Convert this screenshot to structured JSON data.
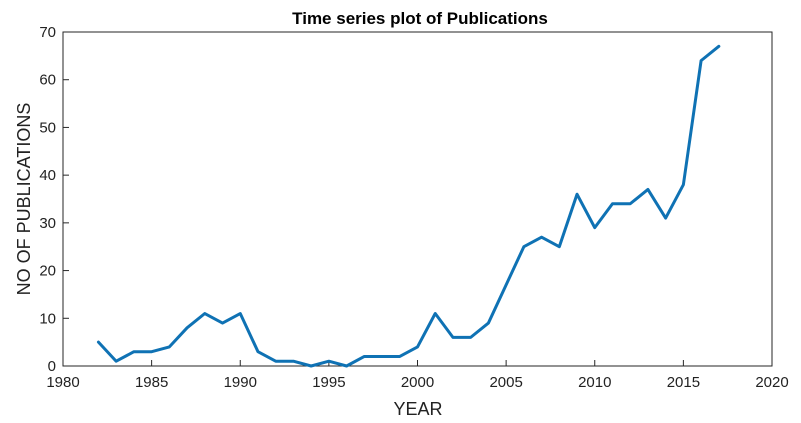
{
  "chart_data": {
    "type": "line",
    "title": "Time series plot of Publications",
    "xlabel": "YEAR",
    "ylabel": "NO OF PUBLICATIONS",
    "xlim": [
      1980,
      2020
    ],
    "ylim": [
      0,
      70
    ],
    "xticks": [
      1980,
      1985,
      1990,
      1995,
      2000,
      2005,
      2010,
      2015,
      2020
    ],
    "yticks": [
      0,
      10,
      20,
      30,
      40,
      50,
      60,
      70
    ],
    "grid": false,
    "series_color": "#0f72b4",
    "series": [
      {
        "x": [
          1982,
          1983,
          1984,
          1985,
          1986,
          1987,
          1988,
          1989,
          1990,
          1991,
          1992,
          1993,
          1994,
          1995,
          1996,
          1997,
          1998,
          1999,
          2000,
          2001,
          2002,
          2003,
          2004,
          2005,
          2006,
          2007,
          2008,
          2009,
          2010,
          2011,
          2012,
          2013,
          2014,
          2015,
          2016,
          2017
        ],
        "values": [
          5,
          1,
          3,
          3,
          4,
          8,
          11,
          9,
          11,
          3,
          1,
          1,
          0,
          1,
          0,
          2,
          2,
          2,
          4,
          11,
          6,
          6,
          9,
          17,
          25,
          27,
          25,
          36,
          29,
          34,
          34,
          37,
          31,
          38,
          64,
          67
        ]
      }
    ]
  }
}
